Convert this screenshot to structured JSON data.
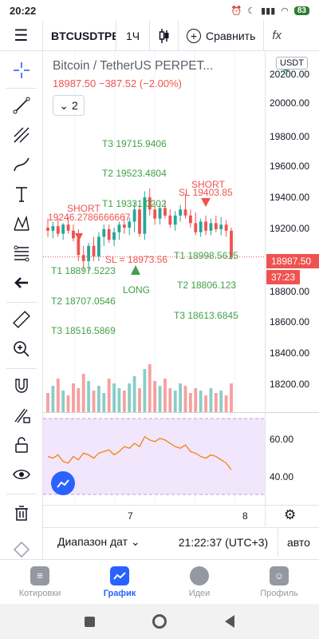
{
  "status": {
    "time": "20:22",
    "battery": "83"
  },
  "toolbar": {
    "symbol": "BTCUSDTPE",
    "interval": "1Ч",
    "compare_label": "Сравнить",
    "fx_label": "fx"
  },
  "legend": {
    "title": "Bitcoin / TetherUS PERPET...",
    "price": "18987.50",
    "change": "−387.52 (−2.00%)",
    "collapse_count": "2",
    "currency": "USDT"
  },
  "colors": {
    "up": "#26a69a",
    "down": "#ef5350",
    "accent": "#2962ff",
    "target_label": "#43a047",
    "rsi_line": "#f57c00"
  },
  "price_axis": {
    "ticks": [
      "20200.00",
      "20000.00",
      "19800.00",
      "19600.00",
      "19400.00",
      "19200.00",
      "18800.00",
      "18600.00",
      "18400.00",
      "18200.00"
    ],
    "last_price": "18987.50",
    "countdown": "37:23"
  },
  "rsi_axis": {
    "ticks": [
      "60.00",
      "40.00"
    ]
  },
  "time_axis": {
    "ticks": [
      "7",
      "8"
    ]
  },
  "annotations": {
    "t3_top": "T3 19715.9406",
    "t2_top": "T2 19523.4804",
    "short_right_label": "SHORT",
    "sl_right": "SL 19403.85",
    "t1_top": "T1 19331.0202",
    "short_left_label": "SHORT",
    "short_left_price": "19246.2786666667",
    "t1_right": "T1 18998.5615",
    "sl_left": "SL = 18973.56",
    "t1_left": "T1 18897.5223",
    "long_label": "LONG",
    "t2_right": "T2 18806.123",
    "t2_left": "T2 18707.0546",
    "t3_right": "T3 18613.6845",
    "t3_left": "T3 18516.5869"
  },
  "chart_data": {
    "type": "candlestick",
    "ylim": [
      18080,
      20270
    ],
    "candles": [
      {
        "o": 19180,
        "h": 19240,
        "l": 19120,
        "c": 19160
      },
      {
        "o": 19160,
        "h": 19220,
        "l": 19110,
        "c": 19190
      },
      {
        "o": 19190,
        "h": 19240,
        "l": 19120,
        "c": 19140
      },
      {
        "o": 19140,
        "h": 19210,
        "l": 19100,
        "c": 19200
      },
      {
        "o": 19200,
        "h": 19250,
        "l": 19140,
        "c": 19160
      },
      {
        "o": 19160,
        "h": 19200,
        "l": 19090,
        "c": 19110
      },
      {
        "o": 19110,
        "h": 19170,
        "l": 18960,
        "c": 19000
      },
      {
        "o": 19000,
        "h": 19060,
        "l": 18900,
        "c": 18960
      },
      {
        "o": 18960,
        "h": 19080,
        "l": 18880,
        "c": 19060
      },
      {
        "o": 19060,
        "h": 19120,
        "l": 18960,
        "c": 18990
      },
      {
        "o": 18990,
        "h": 19150,
        "l": 18960,
        "c": 19120
      },
      {
        "o": 19120,
        "h": 19200,
        "l": 19060,
        "c": 19170
      },
      {
        "o": 19170,
        "h": 19200,
        "l": 19080,
        "c": 19100
      },
      {
        "o": 19100,
        "h": 19180,
        "l": 19060,
        "c": 19150
      },
      {
        "o": 19150,
        "h": 19220,
        "l": 19100,
        "c": 19200
      },
      {
        "o": 19200,
        "h": 19260,
        "l": 19140,
        "c": 19180
      },
      {
        "o": 19180,
        "h": 19250,
        "l": 19130,
        "c": 19220
      },
      {
        "o": 19220,
        "h": 19350,
        "l": 19150,
        "c": 19300
      },
      {
        "o": 19300,
        "h": 19330,
        "l": 19120,
        "c": 19140
      },
      {
        "o": 19140,
        "h": 19420,
        "l": 19100,
        "c": 19380
      },
      {
        "o": 19380,
        "h": 19440,
        "l": 19260,
        "c": 19300
      },
      {
        "o": 19300,
        "h": 19340,
        "l": 19200,
        "c": 19240
      },
      {
        "o": 19240,
        "h": 19340,
        "l": 19200,
        "c": 19310
      },
      {
        "o": 19310,
        "h": 19360,
        "l": 19240,
        "c": 19260
      },
      {
        "o": 19260,
        "h": 19300,
        "l": 19180,
        "c": 19200
      },
      {
        "o": 19200,
        "h": 19290,
        "l": 19160,
        "c": 19260
      },
      {
        "o": 19260,
        "h": 19330,
        "l": 19220,
        "c": 19300
      },
      {
        "o": 19300,
        "h": 19400,
        "l": 19240,
        "c": 19260
      },
      {
        "o": 19260,
        "h": 19300,
        "l": 19180,
        "c": 19210
      },
      {
        "o": 19210,
        "h": 19280,
        "l": 19130,
        "c": 19150
      },
      {
        "o": 19150,
        "h": 19240,
        "l": 19120,
        "c": 19220
      },
      {
        "o": 19220,
        "h": 19260,
        "l": 19130,
        "c": 19160
      },
      {
        "o": 19160,
        "h": 19240,
        "l": 19130,
        "c": 19210
      },
      {
        "o": 19210,
        "h": 19260,
        "l": 19150,
        "c": 19170
      },
      {
        "o": 19170,
        "h": 19250,
        "l": 19130,
        "c": 19200
      },
      {
        "o": 19200,
        "h": 19230,
        "l": 19120,
        "c": 19160
      },
      {
        "o": 19160,
        "h": 19180,
        "l": 18970,
        "c": 18987.5
      }
    ],
    "volume": [
      40,
      55,
      70,
      45,
      35,
      60,
      50,
      80,
      65,
      45,
      55,
      40,
      70,
      60,
      50,
      45,
      60,
      75,
      50,
      90,
      100,
      65,
      55,
      70,
      50,
      45,
      60,
      55,
      40,
      50,
      45,
      35,
      50,
      40,
      45,
      35,
      60
    ],
    "rsi": [
      50,
      49,
      51,
      47,
      46,
      50,
      48,
      52,
      51,
      49,
      52,
      53,
      54,
      51,
      53,
      56,
      55,
      58,
      56,
      62,
      60,
      59,
      61,
      60,
      58,
      56,
      55,
      57,
      53,
      52,
      50,
      49,
      51,
      50,
      48,
      46,
      42
    ],
    "rsi_ylim": [
      27,
      73
    ]
  },
  "range": {
    "label": "Диапазон дат",
    "time": "21:22:37 (UTC+3)",
    "scale": "авто"
  },
  "nav": [
    {
      "label": "Котировки",
      "active": false
    },
    {
      "label": "График",
      "active": true
    },
    {
      "label": "Идеи",
      "active": false
    },
    {
      "label": "Профиль",
      "active": false
    }
  ]
}
